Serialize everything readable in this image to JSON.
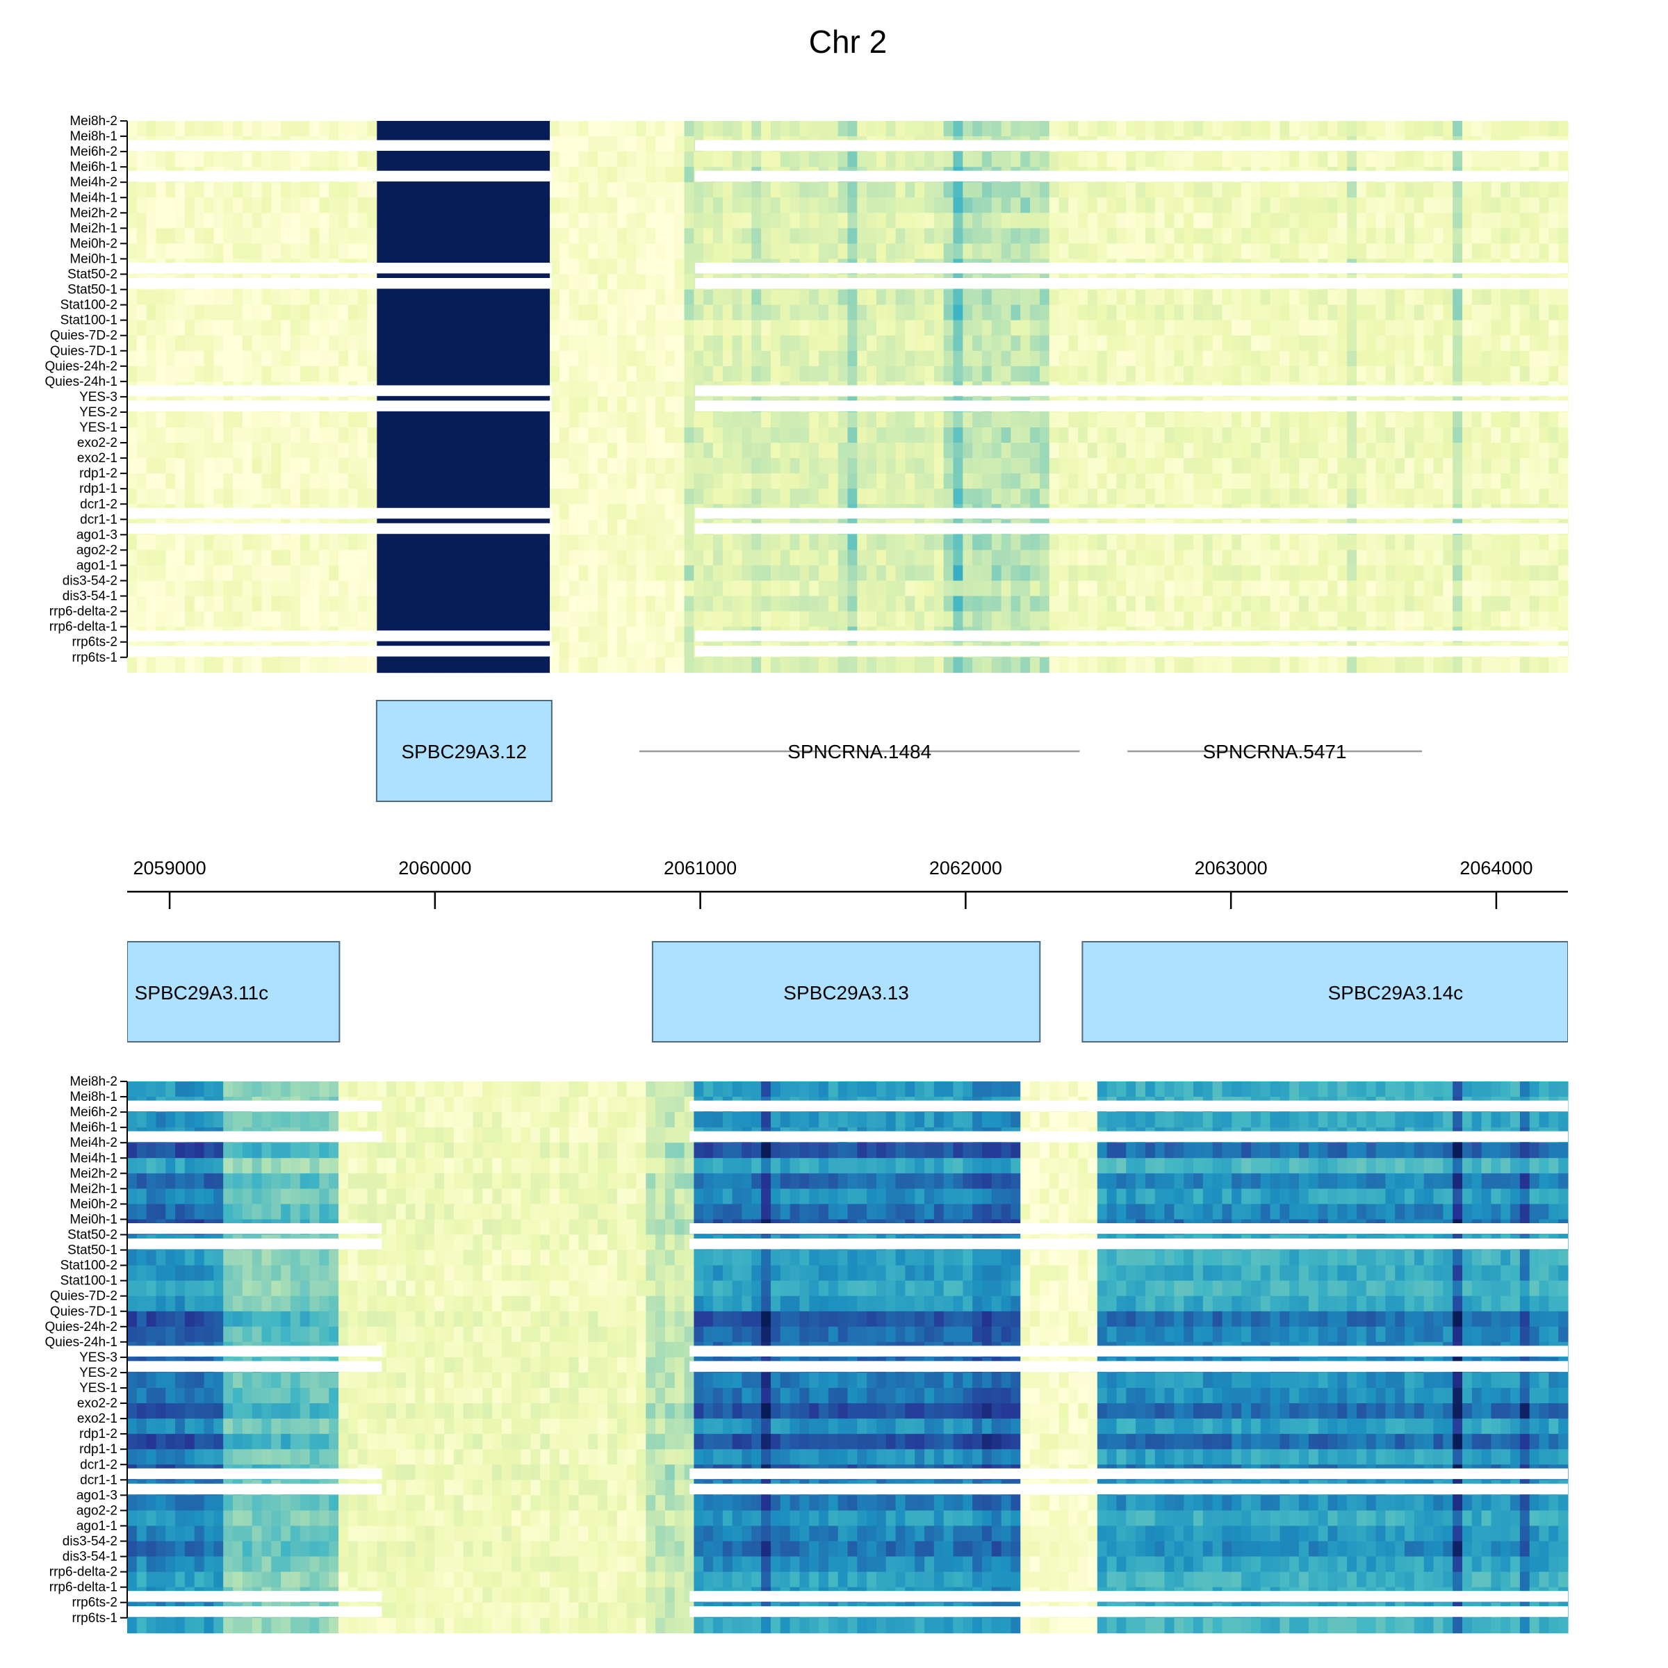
{
  "chart_data": {
    "type": "heatmap",
    "title": "Chr 2",
    "colormap": [
      "#ffffd9",
      "#edf8b1",
      "#c7e9b4",
      "#7fcdbb",
      "#41b6c4",
      "#1d91c0",
      "#225ea8",
      "#253494",
      "#081d58"
    ],
    "gap_color": "#ffffff",
    "xlim": [
      2058840,
      2064270
    ],
    "x_ticks": [
      2059000,
      2060000,
      2061000,
      2062000,
      2063000,
      2064000
    ],
    "x_tick_labels": [
      "2059000",
      "2060000",
      "2061000",
      "2062000",
      "2063000",
      "2064000"
    ],
    "samples": [
      "Mei8h-2",
      "Mei8h-1",
      "Mei6h-2",
      "Mei6h-1",
      "Mei4h-2",
      "Mei4h-1",
      "Mei2h-2",
      "Mei2h-1",
      "Mei0h-2",
      "Mei0h-1",
      "Stat50-2",
      "Stat50-1",
      "Stat100-2",
      "Stat100-1",
      "Quies-7D-2",
      "Quies-7D-1",
      "Quies-24h-2",
      "Quies-24h-1",
      "YES-3",
      "YES-2",
      "YES-1",
      "exo2-2",
      "exo2-1",
      "rdp1-2",
      "rdp1-1",
      "dcr1-2",
      "dcr1-1",
      "ago1-3",
      "ago2-2",
      "ago1-1",
      "dis3-54-2",
      "dis3-54-1",
      "rrp6-delta-2",
      "rrp6-delta-1",
      "rrp6ts-2",
      "rrp6ts-1"
    ],
    "panels": [
      {
        "strand": "top",
        "profile": [
          {
            "x0": 2058840,
            "x1": 2059780,
            "level": 0.05
          },
          {
            "x0": 2059780,
            "x1": 2060440,
            "level": 1.0
          },
          {
            "x0": 2060440,
            "x1": 2060960,
            "level": 0.04
          },
          {
            "x0": 2060960,
            "x1": 2061900,
            "level": 0.17
          },
          {
            "x0": 2061900,
            "x1": 2062300,
            "level": 0.26
          },
          {
            "x0": 2062300,
            "x1": 2064270,
            "level": 0.09
          }
        ],
        "hot_columns": [
          {
            "x": 2061560,
            "level": 0.45
          },
          {
            "x": 2061980,
            "level": 0.5
          },
          {
            "x": 2062060,
            "level": 0.42
          },
          {
            "x": 2061200,
            "level": 0.32
          },
          {
            "x": 2060970,
            "level": 0.3
          },
          {
            "x": 2063850,
            "level": 0.3
          },
          {
            "x": 2063460,
            "level": 0.22
          }
        ]
      },
      {
        "strand": "bottom",
        "profile": [
          {
            "x0": 2058840,
            "x1": 2059200,
            "level": 0.68
          },
          {
            "x0": 2059200,
            "x1": 2059650,
            "level": 0.42
          },
          {
            "x0": 2059650,
            "x1": 2060800,
            "level": 0.1
          },
          {
            "x0": 2060800,
            "x1": 2060960,
            "level": 0.25
          },
          {
            "x0": 2060960,
            "x1": 2062040,
            "level": 0.66
          },
          {
            "x0": 2062040,
            "x1": 2062200,
            "level": 0.72
          },
          {
            "x0": 2062200,
            "x1": 2062500,
            "level": 0.05
          },
          {
            "x0": 2062500,
            "x1": 2064270,
            "level": 0.6
          }
        ],
        "hot_columns": [
          {
            "x": 2059120,
            "level": 0.85
          },
          {
            "x": 2061250,
            "level": 0.9
          },
          {
            "x": 2061990,
            "level": 0.82
          },
          {
            "x": 2063850,
            "level": 0.95
          },
          {
            "x": 2064100,
            "level": 0.9
          },
          {
            "x": 2063000,
            "level": 0.85
          }
        ]
      }
    ],
    "annotations_top": [
      {
        "label": "SPBC29A3.12",
        "type": "gene",
        "start": 2059780,
        "end": 2060440
      },
      {
        "label": "SPNCRNA.1484",
        "type": "ncRNA",
        "start": 2060770,
        "end": 2062430
      },
      {
        "label": "SPNCRNA.5471",
        "type": "ncRNA",
        "start": 2062610,
        "end": 2063720
      }
    ],
    "annotations_bottom": [
      {
        "label": "SPBC29A3.11c",
        "type": "gene",
        "start": 2058600,
        "end": 2059640
      },
      {
        "label": "SPBC29A3.13",
        "type": "gene",
        "start": 2060820,
        "end": 2062280
      },
      {
        "label": "SPBC29A3.14c",
        "type": "gene",
        "start": 2062440,
        "end": 2064800
      }
    ],
    "colors": {
      "gene_fill": "#aee0ff",
      "gene_stroke": "#4d6a80",
      "ncrna_line": "#9a9a9a",
      "axis": "#000000"
    }
  }
}
